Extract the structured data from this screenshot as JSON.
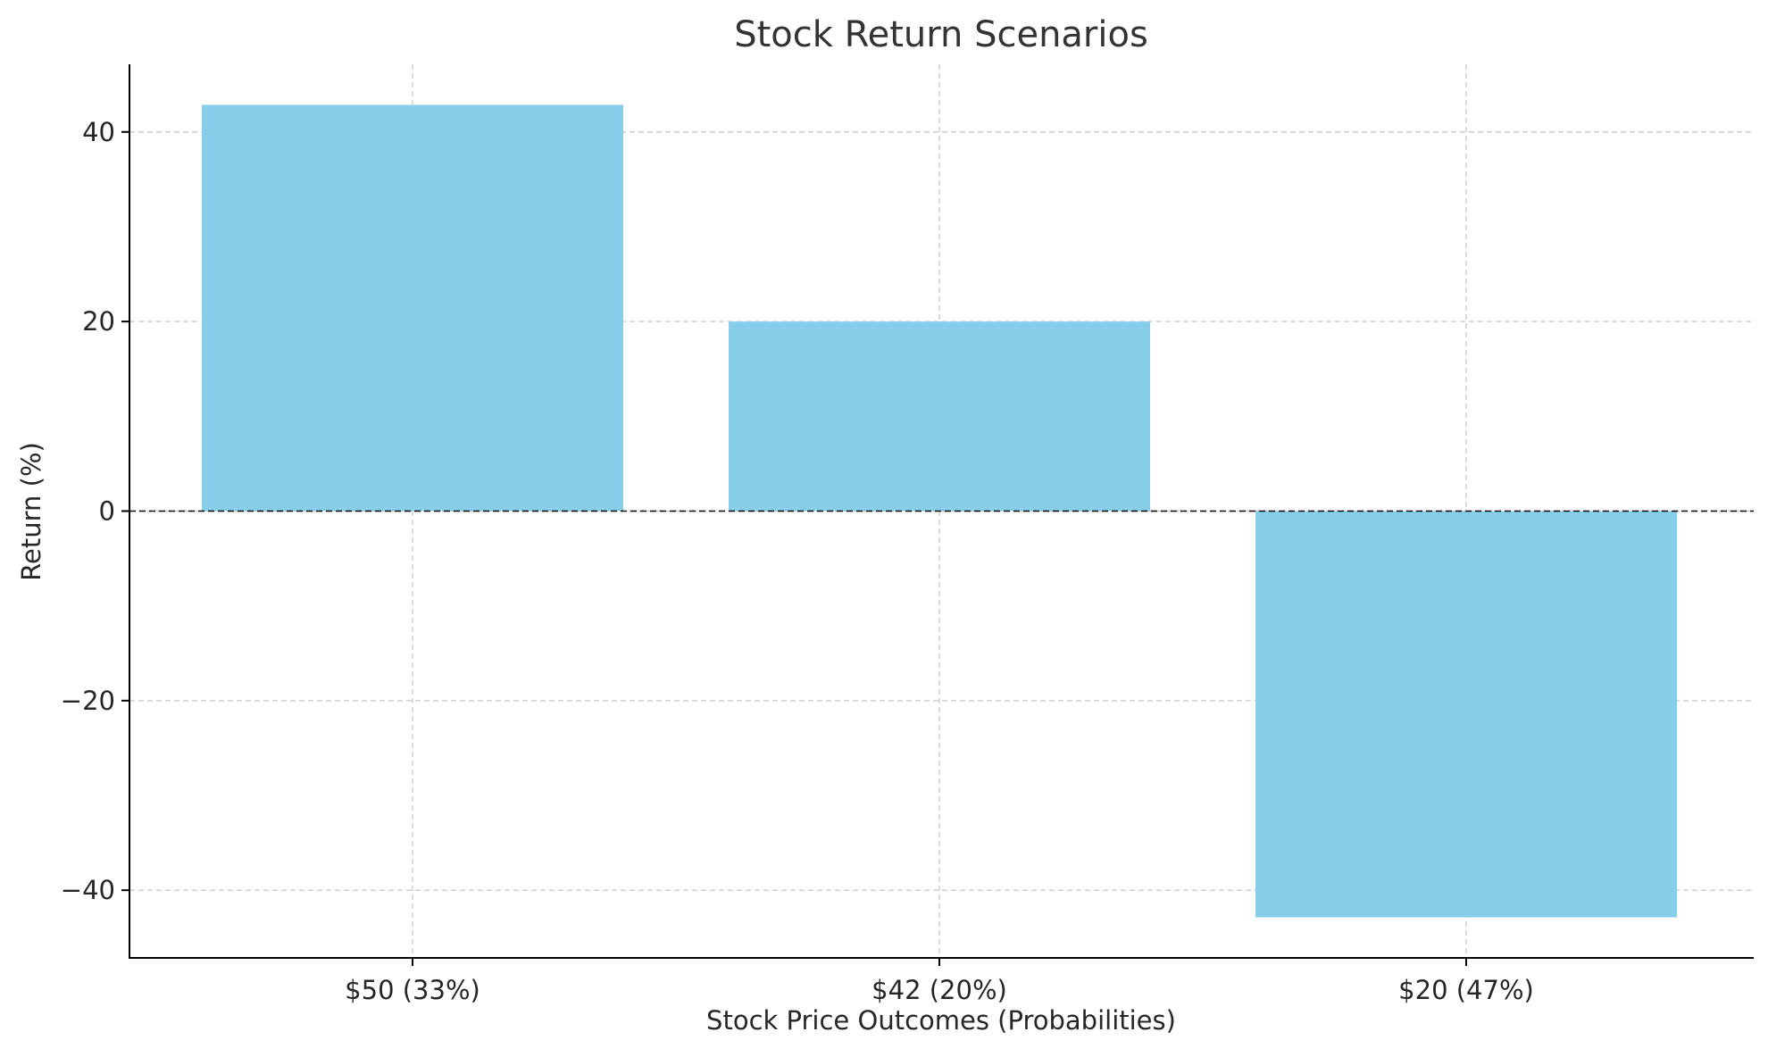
{
  "chart_data": {
    "type": "bar",
    "title": "Stock Return Scenarios",
    "xlabel": "Stock Price Outcomes (Probabilities)",
    "ylabel": "Return (%)",
    "categories": [
      "$50 (33%)",
      "$42 (20%)",
      "$20 (47%)"
    ],
    "values": [
      42.86,
      20,
      -42.86
    ],
    "ylim": [
      -47.14,
      47.14
    ],
    "yticks": [
      -40,
      -20,
      0,
      20,
      40
    ],
    "ytick_labels": [
      "−40",
      "−20",
      "0",
      "20",
      "40"
    ],
    "grid": true,
    "reference_line": 0,
    "bar_color": "#87CEEB"
  }
}
